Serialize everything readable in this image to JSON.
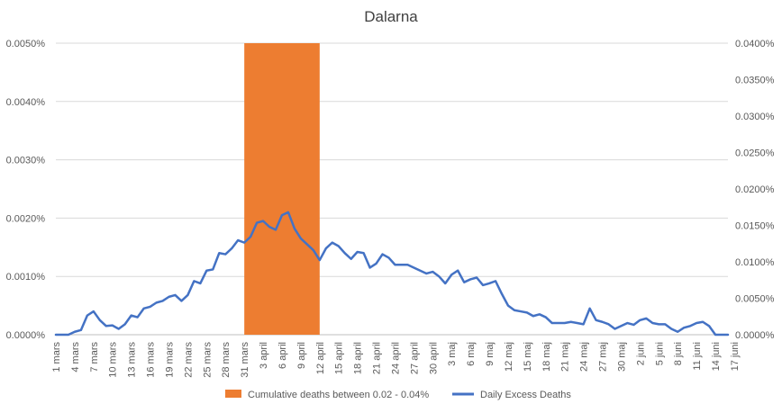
{
  "chart_data": {
    "type": "line",
    "title": "Dalarna",
    "colors": {
      "band": "#ED7D31",
      "line": "#4472C4",
      "grid": "#D9D9D9"
    },
    "y_left": {
      "min": 0,
      "max": 0.005,
      "ticks": [
        0,
        0.001,
        0.002,
        0.003,
        0.004,
        0.005
      ],
      "tick_labels": [
        "0.0000%",
        "0.0010%",
        "0.0020%",
        "0.0030%",
        "0.0040%",
        "0.0050%"
      ]
    },
    "y_right": {
      "min": 0,
      "max": 0.04,
      "ticks": [
        0,
        0.005,
        0.01,
        0.015,
        0.02,
        0.025,
        0.03,
        0.035,
        0.04
      ],
      "tick_labels": [
        "0.0000%",
        "0.0050%",
        "0.0100%",
        "0.0150%",
        "0.0200%",
        "0.0250%",
        "0.0300%",
        "0.0350%",
        "0.0400%"
      ]
    },
    "x_tick_labels": [
      "1 mars",
      "4 mars",
      "7 mars",
      "10 mars",
      "13 mars",
      "16 mars",
      "19 mars",
      "22 mars",
      "25 mars",
      "28 mars",
      "31 mars",
      "3 april",
      "6 april",
      "9 april",
      "12 april",
      "15 april",
      "18 april",
      "21 april",
      "24 april",
      "27 april",
      "30 april",
      "3 maj",
      "6 maj",
      "9 maj",
      "12 maj",
      "15 maj",
      "18 maj",
      "21 maj",
      "24 maj",
      "27 maj",
      "30 maj",
      "2 juni",
      "5 juni",
      "8 juni",
      "11 juni",
      "14 juni",
      "17 juni"
    ],
    "x_tick_step_days": 3,
    "band": {
      "name": "Cumulative deaths between 0.02 - 0.04%",
      "from_label": "31 mars",
      "to_label": "12 april",
      "from_index": 30,
      "to_index": 42,
      "y_from": 0.02,
      "y_to": 0.04,
      "axis": "right"
    },
    "series": [
      {
        "name": "Daily Excess Deaths",
        "axis": "left",
        "values": [
          0,
          0,
          0,
          5e-05,
          8e-05,
          0.00033,
          0.0004,
          0.00025,
          0.00015,
          0.00016,
          0.0001,
          0.00018,
          0.00033,
          0.0003,
          0.00045,
          0.00048,
          0.00055,
          0.00058,
          0.00065,
          0.00068,
          0.00058,
          0.00068,
          0.00092,
          0.00088,
          0.0011,
          0.00112,
          0.0014,
          0.00138,
          0.00148,
          0.00162,
          0.00158,
          0.00168,
          0.00192,
          0.00195,
          0.00185,
          0.0018,
          0.00205,
          0.0021,
          0.00182,
          0.00165,
          0.00155,
          0.00145,
          0.00128,
          0.00148,
          0.00158,
          0.00152,
          0.0014,
          0.0013,
          0.00142,
          0.0014,
          0.00115,
          0.00122,
          0.00138,
          0.00132,
          0.0012,
          0.0012,
          0.0012,
          0.00115,
          0.0011,
          0.00105,
          0.00108,
          0.001,
          0.00088,
          0.00103,
          0.0011,
          0.0009,
          0.00095,
          0.00098,
          0.00085,
          0.00088,
          0.00092,
          0.0007,
          0.0005,
          0.00042,
          0.0004,
          0.00038,
          0.00032,
          0.00035,
          0.0003,
          0.0002,
          0.0002,
          0.0002,
          0.00022,
          0.0002,
          0.00018,
          0.00045,
          0.00025,
          0.00022,
          0.00018,
          0.0001,
          0.00015,
          0.0002,
          0.00017,
          0.00025,
          0.00028,
          0.0002,
          0.00018,
          0.00018,
          0.0001,
          5e-05,
          0.00012,
          0.00015,
          0.0002,
          0.00022,
          0.00015,
          0,
          0,
          0
        ]
      }
    ],
    "legend": {
      "position": "bottom",
      "entries": [
        "Cumulative deaths between 0.02 - 0.04%",
        "Daily Excess Deaths"
      ]
    },
    "grid": true
  }
}
